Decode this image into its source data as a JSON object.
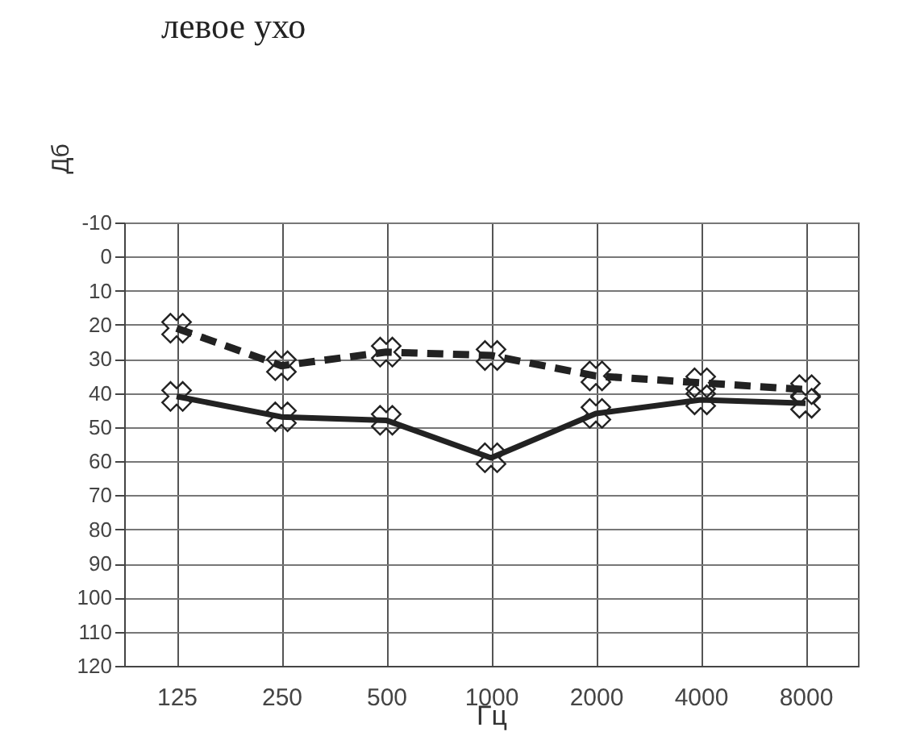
{
  "chart_data": {
    "type": "line",
    "title": "левое ухо",
    "xlabel": "Гц",
    "ylabel": "Дб",
    "categories": [
      "125",
      "250",
      "500",
      "1000",
      "2000",
      "4000",
      "8000"
    ],
    "series": [
      {
        "color": "#222222",
        "line_style": "dashed",
        "values": [
          21,
          32,
          28,
          29,
          35,
          37,
          39
        ]
      },
      {
        "color": "#222222",
        "line_style": "solid",
        "values": [
          41,
          47,
          48,
          59,
          46,
          42,
          43
        ]
      }
    ],
    "ylim": [
      120,
      -10
    ],
    "yticks": [
      -10,
      0,
      10,
      20,
      30,
      40,
      50,
      60,
      70,
      80,
      90,
      100,
      110,
      120
    ],
    "grid": true,
    "marker": "cross"
  }
}
